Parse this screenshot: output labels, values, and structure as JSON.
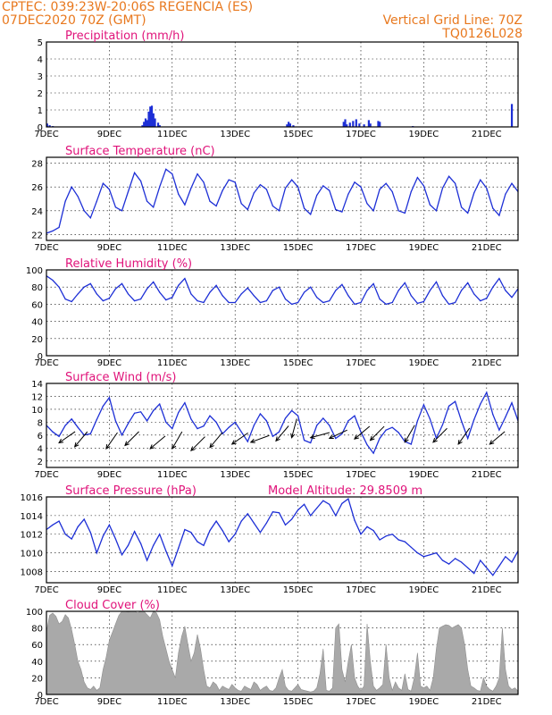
{
  "header": {
    "line1_left": "CPTEC:   039:23W-20:06S   REGENCIA (ES)",
    "line2_left": "07DEC2020 70Z (GMT)",
    "line2_right": "Vertical Grid Line: 70Z",
    "line3_right": "TQ0126L028"
  },
  "colors": {
    "header": "#e8781e",
    "panel_title": "#e0137a",
    "series": "#1d2fd6",
    "cloud_fill": "#a9a9a9",
    "frame": "#000000"
  },
  "x_axis": {
    "range_days": [
      7,
      22
    ],
    "tick_labels": [
      "7DEC",
      "9DEC",
      "11DEC",
      "13DEC",
      "15DEC",
      "17DEC",
      "19DEC",
      "21DEC"
    ],
    "grid": "vertical dotted at each DEC tick"
  },
  "chart_data": [
    {
      "type": "bar",
      "title": "Precipitation (mm/h)",
      "ylim": [
        0,
        5
      ],
      "yticks": [
        0,
        1,
        2,
        3,
        4,
        5
      ],
      "bars": [
        [
          7.02,
          0.2
        ],
        [
          7.1,
          0.1
        ],
        [
          7.2,
          0.05
        ],
        [
          10.05,
          0.1
        ],
        [
          10.1,
          0.3
        ],
        [
          10.15,
          0.5
        ],
        [
          10.2,
          0.4
        ],
        [
          10.25,
          0.9
        ],
        [
          10.3,
          1.2
        ],
        [
          10.35,
          1.25
        ],
        [
          10.4,
          0.8
        ],
        [
          10.45,
          0.5
        ],
        [
          10.55,
          0.25
        ],
        [
          10.6,
          0.1
        ],
        [
          14.65,
          0.15
        ],
        [
          14.7,
          0.3
        ],
        [
          14.75,
          0.2
        ],
        [
          14.85,
          0.1
        ],
        [
          16.45,
          0.3
        ],
        [
          16.5,
          0.45
        ],
        [
          16.55,
          0.15
        ],
        [
          16.65,
          0.25
        ],
        [
          16.75,
          0.35
        ],
        [
          16.85,
          0.45
        ],
        [
          16.95,
          0.2
        ],
        [
          17.1,
          0.15
        ],
        [
          17.25,
          0.4
        ],
        [
          17.3,
          0.2
        ],
        [
          17.55,
          0.35
        ],
        [
          17.6,
          0.3
        ],
        [
          18.65,
          0.05
        ],
        [
          21.8,
          1.35
        ]
      ]
    },
    {
      "type": "line",
      "title": "Surface Temperature (nC)",
      "ylim": [
        21.5,
        28.5
      ],
      "yticks": [
        22,
        24,
        26,
        28
      ],
      "x": [
        7.0,
        7.2,
        7.4,
        7.6,
        7.8,
        8.0,
        8.2,
        8.4,
        8.6,
        8.8,
        9.0,
        9.2,
        9.4,
        9.6,
        9.8,
        10.0,
        10.2,
        10.4,
        10.6,
        10.8,
        11.0,
        11.2,
        11.4,
        11.6,
        11.8,
        12.0,
        12.2,
        12.4,
        12.6,
        12.8,
        13.0,
        13.2,
        13.4,
        13.6,
        13.8,
        14.0,
        14.2,
        14.4,
        14.6,
        14.8,
        15.0,
        15.2,
        15.4,
        15.6,
        15.8,
        16.0,
        16.2,
        16.4,
        16.6,
        16.8,
        17.0,
        17.2,
        17.4,
        17.6,
        17.8,
        18.0,
        18.2,
        18.4,
        18.6,
        18.8,
        19.0,
        19.2,
        19.4,
        19.6,
        19.8,
        20.0,
        20.2,
        20.4,
        20.6,
        20.8,
        21.0,
        21.2,
        21.4,
        21.6,
        21.8,
        22.0
      ],
      "y": [
        22.1,
        22.3,
        22.6,
        24.8,
        26.0,
        25.2,
        24.0,
        23.4,
        24.8,
        26.3,
        25.8,
        24.3,
        24.0,
        25.6,
        27.2,
        26.5,
        24.8,
        24.3,
        26.0,
        27.5,
        27.1,
        25.4,
        24.5,
        25.9,
        27.1,
        26.4,
        24.8,
        24.4,
        25.7,
        26.6,
        26.4,
        24.6,
        24.1,
        25.5,
        26.2,
        25.8,
        24.4,
        24.0,
        25.9,
        26.6,
        26.0,
        24.2,
        23.7,
        25.3,
        26.1,
        25.7,
        24.1,
        23.9,
        25.4,
        26.4,
        26.0,
        24.6,
        24.0,
        25.8,
        26.3,
        25.6,
        24.0,
        23.8,
        25.6,
        26.8,
        26.1,
        24.5,
        24.0,
        25.9,
        26.9,
        26.3,
        24.3,
        23.8,
        25.5,
        26.6,
        25.9,
        24.2,
        23.6,
        25.4,
        26.3,
        25.6
      ]
    },
    {
      "type": "line",
      "title": "Relative Humidity (%)",
      "ylim": [
        0,
        100
      ],
      "yticks": [
        0,
        20,
        40,
        60,
        80,
        100
      ],
      "x": [
        7.0,
        7.2,
        7.4,
        7.6,
        7.8,
        8.0,
        8.2,
        8.4,
        8.6,
        8.8,
        9.0,
        9.2,
        9.4,
        9.6,
        9.8,
        10.0,
        10.2,
        10.4,
        10.6,
        10.8,
        11.0,
        11.2,
        11.4,
        11.6,
        11.8,
        12.0,
        12.2,
        12.4,
        12.6,
        12.8,
        13.0,
        13.2,
        13.4,
        13.6,
        13.8,
        14.0,
        14.2,
        14.4,
        14.6,
        14.8,
        15.0,
        15.2,
        15.4,
        15.6,
        15.8,
        16.0,
        16.2,
        16.4,
        16.6,
        16.8,
        17.0,
        17.2,
        17.4,
        17.6,
        17.8,
        18.0,
        18.2,
        18.4,
        18.6,
        18.8,
        19.0,
        19.2,
        19.4,
        19.6,
        19.8,
        20.0,
        20.2,
        20.4,
        20.6,
        20.8,
        21.0,
        21.2,
        21.4,
        21.6,
        21.8,
        22.0
      ],
      "y": [
        93,
        88,
        80,
        66,
        63,
        72,
        80,
        84,
        72,
        64,
        67,
        78,
        84,
        72,
        64,
        66,
        78,
        86,
        74,
        65,
        68,
        82,
        90,
        72,
        64,
        62,
        74,
        82,
        70,
        62,
        62,
        72,
        79,
        70,
        62,
        64,
        76,
        80,
        66,
        60,
        62,
        74,
        80,
        68,
        62,
        64,
        76,
        83,
        70,
        60,
        62,
        76,
        84,
        66,
        60,
        62,
        76,
        85,
        70,
        61,
        63,
        76,
        86,
        70,
        60,
        62,
        76,
        85,
        72,
        64,
        67,
        80,
        90,
        76,
        68,
        78
      ]
    },
    {
      "type": "line",
      "title": "Surface Wind (m/s)",
      "ylim": [
        1,
        14
      ],
      "yticks": [
        2,
        4,
        6,
        8,
        10,
        12,
        14
      ],
      "x": [
        7.0,
        7.2,
        7.4,
        7.6,
        7.8,
        8.0,
        8.2,
        8.4,
        8.6,
        8.8,
        9.0,
        9.2,
        9.4,
        9.6,
        9.8,
        10.0,
        10.2,
        10.4,
        10.6,
        10.8,
        11.0,
        11.2,
        11.4,
        11.6,
        11.8,
        12.0,
        12.2,
        12.4,
        12.6,
        12.8,
        13.0,
        13.2,
        13.4,
        13.6,
        13.8,
        14.0,
        14.2,
        14.4,
        14.6,
        14.8,
        15.0,
        15.2,
        15.4,
        15.6,
        15.8,
        16.0,
        16.2,
        16.4,
        16.6,
        16.8,
        17.0,
        17.2,
        17.4,
        17.6,
        17.8,
        18.0,
        18.2,
        18.4,
        18.6,
        18.8,
        19.0,
        19.2,
        19.4,
        19.6,
        19.8,
        20.0,
        20.2,
        20.4,
        20.6,
        20.8,
        21.0,
        21.2,
        21.4,
        21.6,
        21.8,
        22.0
      ],
      "y": [
        7.5,
        6.5,
        5.8,
        7.5,
        8.5,
        7.2,
        6.0,
        6.2,
        8.4,
        10.5,
        11.8,
        8.2,
        6.0,
        7.8,
        9.4,
        9.6,
        8.2,
        9.8,
        10.8,
        8.0,
        7.0,
        9.5,
        11.0,
        8.5,
        7.0,
        7.4,
        9.0,
        8.0,
        6.2,
        7.2,
        8.0,
        6.5,
        5.0,
        7.5,
        9.3,
        8.2,
        5.8,
        6.5,
        8.6,
        9.8,
        9.0,
        5.2,
        4.8,
        7.5,
        8.6,
        7.5,
        5.5,
        6.2,
        8.2,
        9.0,
        6.5,
        4.5,
        3.2,
        5.5,
        6.8,
        7.2,
        6.4,
        5.0,
        4.6,
        8.2,
        10.7,
        8.5,
        5.5,
        7.6,
        10.5,
        11.2,
        8.2,
        5.5,
        8.4,
        10.8,
        12.6,
        9.2,
        6.8,
        8.8,
        11.0,
        8.2
      ],
      "arrows": [
        [
          7.4,
          4.8,
          235
        ],
        [
          7.9,
          4.2,
          220
        ],
        [
          8.9,
          3.9,
          215
        ],
        [
          9.5,
          4.4,
          225
        ],
        [
          10.3,
          3.9,
          230
        ],
        [
          11.0,
          3.9,
          210
        ],
        [
          11.6,
          3.6,
          225
        ],
        [
          12.2,
          4.1,
          220
        ],
        [
          12.9,
          4.6,
          235
        ],
        [
          13.5,
          4.9,
          250
        ],
        [
          14.3,
          5.1,
          220
        ],
        [
          14.8,
          5.6,
          195
        ],
        [
          15.4,
          5.6,
          255
        ],
        [
          16.0,
          5.5,
          245
        ],
        [
          16.8,
          5.4,
          230
        ],
        [
          17.3,
          5.2,
          225
        ],
        [
          18.4,
          4.9,
          210
        ],
        [
          19.3,
          4.9,
          225
        ],
        [
          20.1,
          4.6,
          215
        ],
        [
          21.1,
          4.6,
          230
        ]
      ]
    },
    {
      "type": "line",
      "title": "Surface Pressure (hPa)",
      "annotation": "Model Altitude: 29.8509 m",
      "ylim": [
        1006.8,
        1016
      ],
      "yticks": [
        1008,
        1010,
        1012,
        1014,
        1016
      ],
      "x": [
        7.0,
        7.2,
        7.4,
        7.6,
        7.8,
        8.0,
        8.2,
        8.4,
        8.6,
        8.8,
        9.0,
        9.2,
        9.4,
        9.6,
        9.8,
        10.0,
        10.2,
        10.4,
        10.6,
        10.8,
        11.0,
        11.2,
        11.4,
        11.6,
        11.8,
        12.0,
        12.2,
        12.4,
        12.6,
        12.8,
        13.0,
        13.2,
        13.4,
        13.6,
        13.8,
        14.0,
        14.2,
        14.4,
        14.6,
        14.8,
        15.0,
        15.2,
        15.4,
        15.6,
        15.8,
        16.0,
        16.2,
        16.4,
        16.6,
        16.8,
        17.0,
        17.2,
        17.4,
        17.6,
        17.8,
        18.0,
        18.2,
        18.4,
        18.6,
        18.8,
        19.0,
        19.2,
        19.4,
        19.6,
        19.8,
        20.0,
        20.2,
        20.4,
        20.6,
        20.8,
        21.0,
        21.2,
        21.4,
        21.6,
        21.8,
        22.0
      ],
      "y": [
        1012.5,
        1013.0,
        1013.4,
        1012.0,
        1011.5,
        1012.8,
        1013.6,
        1012.2,
        1010.0,
        1011.8,
        1013.0,
        1011.5,
        1009.8,
        1010.8,
        1012.3,
        1011.0,
        1009.2,
        1010.8,
        1012.0,
        1010.2,
        1008.6,
        1010.5,
        1012.5,
        1012.2,
        1011.2,
        1010.8,
        1012.4,
        1013.4,
        1012.4,
        1011.2,
        1012.0,
        1013.4,
        1014.2,
        1013.2,
        1012.2,
        1013.2,
        1014.4,
        1014.3,
        1013.0,
        1013.6,
        1014.6,
        1015.2,
        1014.0,
        1014.8,
        1015.6,
        1015.2,
        1014.0,
        1015.3,
        1015.8,
        1013.5,
        1012.0,
        1012.8,
        1012.4,
        1011.4,
        1011.8,
        1012.0,
        1011.4,
        1011.2,
        1010.6,
        1010.0,
        1009.6,
        1009.8,
        1010.0,
        1009.2,
        1008.8,
        1009.4,
        1009.0,
        1008.4,
        1007.8,
        1009.2,
        1008.4,
        1007.6,
        1008.6,
        1009.6,
        1009.0,
        1010.2
      ]
    },
    {
      "type": "area",
      "title": "Cloud Cover (%)",
      "ylim": [
        0,
        100
      ],
      "yticks": [
        0,
        20,
        40,
        60,
        80,
        100
      ],
      "x": [
        7.0,
        7.1,
        7.2,
        7.3,
        7.4,
        7.5,
        7.6,
        7.7,
        7.8,
        7.9,
        8.0,
        8.1,
        8.2,
        8.3,
        8.4,
        8.5,
        8.6,
        8.7,
        8.8,
        8.9,
        9.0,
        9.1,
        9.2,
        9.3,
        9.4,
        9.5,
        9.6,
        9.7,
        9.8,
        9.9,
        10.0,
        10.1,
        10.2,
        10.3,
        10.4,
        10.5,
        10.6,
        10.7,
        10.8,
        10.9,
        11.0,
        11.1,
        11.2,
        11.3,
        11.4,
        11.5,
        11.6,
        11.7,
        11.8,
        11.9,
        12.0,
        12.1,
        12.2,
        12.3,
        12.4,
        12.5,
        12.6,
        12.7,
        12.8,
        12.9,
        13.0,
        13.1,
        13.2,
        13.3,
        13.4,
        13.5,
        13.6,
        13.7,
        13.8,
        13.9,
        14.0,
        14.1,
        14.2,
        14.3,
        14.4,
        14.5,
        14.6,
        14.7,
        14.8,
        14.9,
        15.0,
        15.1,
        15.2,
        15.3,
        15.4,
        15.5,
        15.6,
        15.7,
        15.8,
        15.9,
        16.0,
        16.1,
        16.2,
        16.3,
        16.4,
        16.5,
        16.6,
        16.7,
        16.8,
        16.9,
        17.0,
        17.1,
        17.2,
        17.3,
        17.4,
        17.5,
        17.6,
        17.7,
        17.8,
        17.9,
        18.0,
        18.1,
        18.2,
        18.3,
        18.4,
        18.5,
        18.6,
        18.7,
        18.8,
        18.9,
        19.0,
        19.1,
        19.2,
        19.3,
        19.4,
        19.5,
        19.6,
        19.7,
        19.8,
        19.9,
        20.0,
        20.1,
        20.2,
        20.3,
        20.4,
        20.5,
        20.6,
        20.7,
        20.8,
        20.9,
        21.0,
        21.1,
        21.2,
        21.3,
        21.4,
        21.5,
        21.6,
        21.7,
        21.8,
        21.9,
        22.0
      ],
      "y": [
        75,
        95,
        98,
        94,
        85,
        88,
        96,
        92,
        78,
        60,
        40,
        30,
        15,
        8,
        6,
        10,
        5,
        8,
        30,
        45,
        65,
        75,
        85,
        95,
        100,
        100,
        99,
        100,
        100,
        98,
        100,
        100,
        96,
        92,
        100,
        98,
        90,
        70,
        55,
        40,
        30,
        20,
        50,
        70,
        82,
        60,
        40,
        50,
        72,
        55,
        30,
        10,
        8,
        15,
        12,
        5,
        10,
        8,
        6,
        12,
        8,
        5,
        4,
        10,
        8,
        6,
        15,
        12,
        5,
        8,
        10,
        5,
        4,
        8,
        20,
        30,
        10,
        5,
        4,
        8,
        12,
        6,
        5,
        4,
        3,
        4,
        8,
        25,
        55,
        5,
        4,
        8,
        80,
        85,
        30,
        15,
        40,
        60,
        20,
        10,
        5,
        10,
        85,
        40,
        10,
        5,
        8,
        12,
        60,
        20,
        5,
        15,
        8,
        5,
        25,
        6,
        4,
        20,
        50,
        10,
        8,
        10,
        5,
        20,
        55,
        80,
        82,
        84,
        83,
        80,
        82,
        84,
        80,
        60,
        30,
        10,
        8,
        5,
        4,
        20,
        10,
        6,
        4,
        10,
        20,
        80,
        30,
        10,
        6,
        8,
        4
      ]
    }
  ]
}
